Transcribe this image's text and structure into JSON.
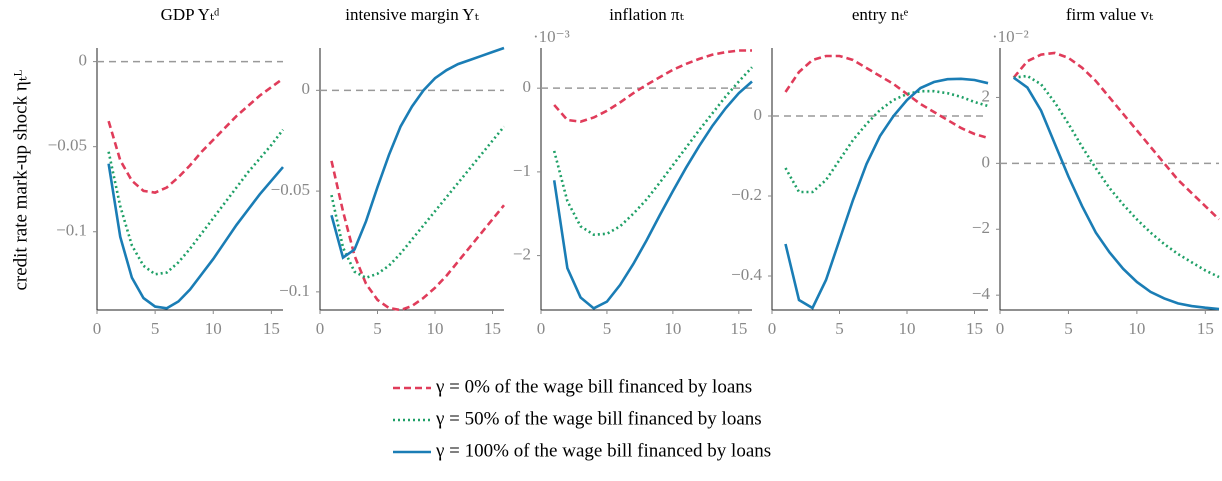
{
  "ylabel": "credit rate mark-up shock ηₜᴸ",
  "legend": [
    {
      "name": "γ = 0% of the wage bill financed by loans",
      "color": "#e03c5a",
      "dash": "dashed"
    },
    {
      "name": "γ = 50% of the wage bill financed by loans",
      "color": "#1fa067",
      "dash": "dotted"
    },
    {
      "name": "γ = 100% of the wage bill financed by loans",
      "color": "#1a7db5",
      "dash": "solid"
    }
  ],
  "chart_data": [
    {
      "type": "line",
      "title": "GDP Yₜᵈ",
      "x": [
        1,
        2,
        3,
        4,
        5,
        6,
        7,
        8,
        9,
        10,
        11,
        12,
        13,
        14,
        15,
        16
      ],
      "xlim": [
        0,
        16
      ],
      "xticks": [
        0,
        5,
        10,
        15
      ],
      "ylim": [
        -0.146,
        0.008
      ],
      "yticks": [
        {
          "value": -0.1,
          "label": "−0.1"
        },
        {
          "value": -0.05,
          "label": "−0.05"
        },
        0
      ],
      "hline": 0,
      "series": [
        {
          "values": [
            -0.035,
            -0.058,
            -0.07,
            -0.076,
            -0.077,
            -0.074,
            -0.068,
            -0.061,
            -0.053,
            -0.046,
            -0.039,
            -0.032,
            -0.026,
            -0.02,
            -0.015,
            -0.01
          ]
        },
        {
          "values": [
            -0.053,
            -0.085,
            -0.108,
            -0.12,
            -0.125,
            -0.124,
            -0.118,
            -0.11,
            -0.101,
            -0.092,
            -0.083,
            -0.074,
            -0.065,
            -0.057,
            -0.049,
            -0.04
          ]
        },
        {
          "values": [
            -0.06,
            -0.103,
            -0.127,
            -0.139,
            -0.144,
            -0.145,
            -0.141,
            -0.134,
            -0.125,
            -0.116,
            -0.106,
            -0.096,
            -0.087,
            -0.078,
            -0.07,
            -0.062
          ]
        }
      ]
    },
    {
      "type": "line",
      "title": "intensive margin Yₜ",
      "x": [
        1,
        2,
        3,
        4,
        5,
        6,
        7,
        8,
        9,
        10,
        11,
        12,
        13,
        14,
        15,
        16
      ],
      "xlim": [
        0,
        16
      ],
      "xticks": [
        0,
        5,
        10,
        15
      ],
      "ylim": [
        -0.109,
        0.021
      ],
      "yticks": [
        {
          "value": -0.1,
          "label": "−0.1"
        },
        {
          "value": -0.05,
          "label": "−0.05"
        },
        0
      ],
      "hline": 0,
      "series": [
        {
          "values": [
            -0.035,
            -0.06,
            -0.082,
            -0.096,
            -0.104,
            -0.108,
            -0.109,
            -0.107,
            -0.103,
            -0.098,
            -0.092,
            -0.085,
            -0.078,
            -0.071,
            -0.064,
            -0.057
          ]
        },
        {
          "values": [
            -0.052,
            -0.078,
            -0.09,
            -0.093,
            -0.091,
            -0.087,
            -0.081,
            -0.074,
            -0.067,
            -0.06,
            -0.053,
            -0.046,
            -0.039,
            -0.032,
            -0.025,
            -0.018
          ]
        },
        {
          "values": [
            -0.062,
            -0.083,
            -0.079,
            -0.065,
            -0.048,
            -0.032,
            -0.018,
            -0.008,
            0.0,
            0.006,
            0.01,
            0.013,
            0.015,
            0.017,
            0.019,
            0.021
          ]
        }
      ]
    },
    {
      "type": "line",
      "title": "inflation πₜ",
      "scale_label": "·10⁻³",
      "x": [
        1,
        2,
        3,
        4,
        5,
        6,
        7,
        8,
        9,
        10,
        11,
        12,
        13,
        14,
        15,
        16
      ],
      "xlim": [
        0,
        16
      ],
      "xticks": [
        0,
        5,
        10,
        15
      ],
      "ylim": [
        -2.65,
        0.48
      ],
      "yticks": [
        {
          "value": -2,
          "label": "−2"
        },
        {
          "value": -1,
          "label": "−1"
        },
        0
      ],
      "hline": 0,
      "series": [
        {
          "values": [
            -0.2,
            -0.38,
            -0.4,
            -0.35,
            -0.27,
            -0.17,
            -0.06,
            0.04,
            0.13,
            0.22,
            0.29,
            0.35,
            0.4,
            0.43,
            0.45,
            0.45
          ]
        },
        {
          "values": [
            -0.75,
            -1.35,
            -1.65,
            -1.75,
            -1.74,
            -1.65,
            -1.5,
            -1.33,
            -1.13,
            -0.92,
            -0.71,
            -0.5,
            -0.3,
            -0.1,
            0.08,
            0.25
          ]
        },
        {
          "values": [
            -1.1,
            -2.15,
            -2.5,
            -2.63,
            -2.55,
            -2.35,
            -2.1,
            -1.82,
            -1.52,
            -1.23,
            -0.95,
            -0.69,
            -0.45,
            -0.24,
            -0.06,
            0.08
          ]
        }
      ]
    },
    {
      "type": "line",
      "title": "entry nₜᵉ",
      "x": [
        1,
        2,
        3,
        4,
        5,
        6,
        7,
        8,
        9,
        10,
        11,
        12,
        13,
        14,
        15,
        16
      ],
      "xlim": [
        0,
        16
      ],
      "xticks": [
        0,
        5,
        10,
        15
      ],
      "ylim": [
        -0.485,
        0.17
      ],
      "yticks": [
        {
          "value": -0.4,
          "label": "−0.4"
        },
        {
          "value": -0.2,
          "label": "−0.2"
        },
        0
      ],
      "hline": 0,
      "series": [
        {
          "values": [
            0.06,
            0.11,
            0.14,
            0.15,
            0.15,
            0.14,
            0.12,
            0.1,
            0.08,
            0.055,
            0.03,
            0.01,
            -0.01,
            -0.03,
            -0.045,
            -0.055
          ]
        },
        {
          "values": [
            -0.13,
            -0.19,
            -0.19,
            -0.16,
            -0.11,
            -0.06,
            -0.02,
            0.015,
            0.04,
            0.055,
            0.062,
            0.062,
            0.057,
            0.048,
            0.035,
            0.025
          ]
        },
        {
          "values": [
            -0.32,
            -0.46,
            -0.48,
            -0.41,
            -0.31,
            -0.21,
            -0.12,
            -0.05,
            0.0,
            0.04,
            0.07,
            0.085,
            0.092,
            0.093,
            0.09,
            0.082
          ]
        }
      ]
    },
    {
      "type": "line",
      "title": "firm value vₜ",
      "scale_label": "·10⁻²",
      "x": [
        1,
        2,
        3,
        4,
        5,
        6,
        7,
        8,
        9,
        10,
        11,
        12,
        13,
        14,
        15,
        16
      ],
      "xlim": [
        0,
        16
      ],
      "xticks": [
        0,
        5,
        10,
        15
      ],
      "ylim": [
        -4.45,
        3.5
      ],
      "yticks": [
        {
          "value": -4,
          "label": "−4"
        },
        {
          "value": -2,
          "label": "−2"
        },
        0,
        2
      ],
      "hline": 0,
      "series": [
        {
          "values": [
            2.6,
            3.1,
            3.3,
            3.35,
            3.2,
            2.9,
            2.5,
            2.0,
            1.5,
            1.0,
            0.5,
            0.0,
            -0.5,
            -0.9,
            -1.3,
            -1.7
          ]
        },
        {
          "values": [
            2.6,
            2.65,
            2.4,
            1.85,
            1.2,
            0.5,
            -0.15,
            -0.75,
            -1.25,
            -1.7,
            -2.1,
            -2.45,
            -2.75,
            -3.0,
            -3.25,
            -3.45
          ]
        },
        {
          "values": [
            2.6,
            2.3,
            1.6,
            0.6,
            -0.4,
            -1.3,
            -2.1,
            -2.7,
            -3.2,
            -3.6,
            -3.9,
            -4.1,
            -4.25,
            -4.33,
            -4.38,
            -4.42
          ]
        }
      ]
    }
  ]
}
